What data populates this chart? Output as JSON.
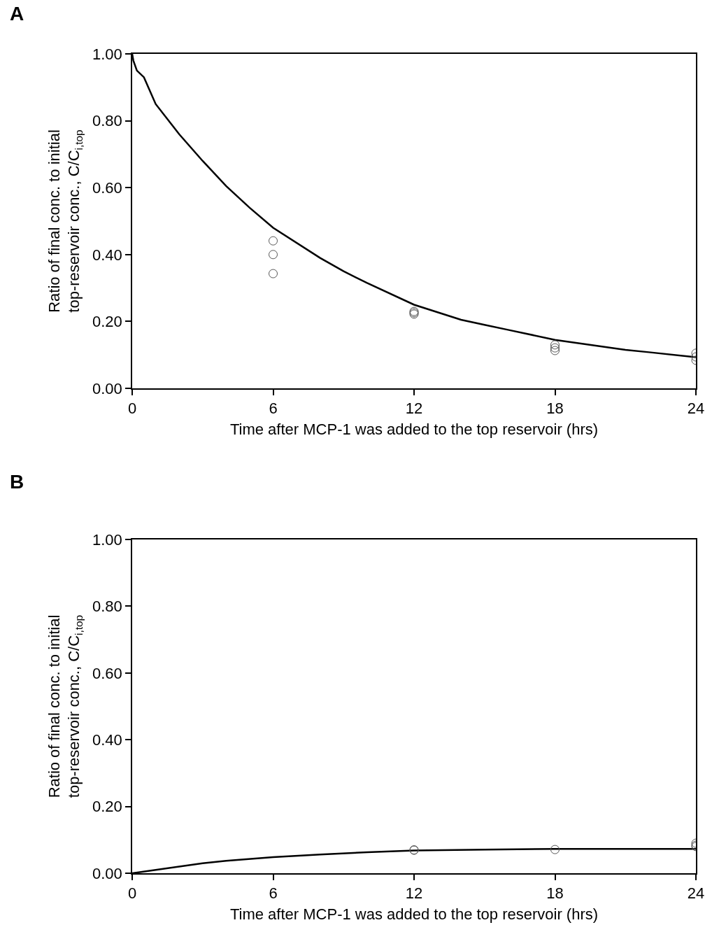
{
  "chart_data": [
    {
      "type": "scatter",
      "title": "A",
      "xlabel": "Time after MCP-1 was added to the top reservoir (hrs)",
      "ylabel": "Ratio of final conc. to initial\ntop-reservoir conc., C/C$_{i,top}$",
      "xlim": [
        0,
        24
      ],
      "ylim": [
        0,
        1
      ],
      "xticks": [
        0,
        6,
        12,
        18,
        24
      ],
      "yticks": [
        {
          "value": 0,
          "label": "0.00"
        },
        {
          "value": 0.2,
          "label": "0.20"
        },
        {
          "value": 0.4,
          "label": "0.40"
        },
        {
          "value": 0.6,
          "label": "0.60"
        },
        {
          "value": 0.8,
          "label": "0.80"
        },
        {
          "value": 1,
          "label": "1.00"
        }
      ],
      "series": [
        {
          "type": "line",
          "color": "#000000",
          "marker": "none",
          "line_style": "solid",
          "x": [
            0,
            0.05,
            0.2,
            0.5,
            1,
            2,
            3,
            4,
            5,
            6,
            8,
            9,
            10,
            12,
            14,
            15,
            16,
            18,
            20,
            21,
            22,
            24
          ],
          "values": [
            1.0,
            0.98,
            0.95,
            0.93,
            0.85,
            0.76,
            0.68,
            0.605,
            0.54,
            0.48,
            0.39,
            0.35,
            0.315,
            0.25,
            0.205,
            0.19,
            0.175,
            0.145,
            0.125,
            0.115,
            0.108,
            0.093
          ]
        },
        {
          "color": "#555555",
          "marker": "circle",
          "x": [
            6,
            6,
            6,
            12,
            12,
            12,
            18,
            18,
            18,
            24,
            24,
            24
          ],
          "values": [
            0.441,
            0.4,
            0.343,
            0.23,
            0.226,
            0.222,
            0.13,
            0.121,
            0.113,
            0.105,
            0.094,
            0.084
          ]
        }
      ]
    },
    {
      "type": "scatter",
      "title": "B",
      "xlabel": "Time after MCP-1 was added to the top reservoir (hrs)",
      "ylabel": "Ratio of final conc. to initial\ntop-reservoir conc., C/C$_{i,top}$",
      "xlim": [
        0,
        24
      ],
      "ylim": [
        0,
        1
      ],
      "xticks": [
        0,
        6,
        12,
        18,
        24
      ],
      "yticks": [
        {
          "value": 0,
          "label": "0.00"
        },
        {
          "value": 0.2,
          "label": "0.20"
        },
        {
          "value": 0.4,
          "label": "0.40"
        },
        {
          "value": 0.6,
          "label": "0.60"
        },
        {
          "value": 0.8,
          "label": "0.80"
        },
        {
          "value": 1,
          "label": "1.00"
        }
      ],
      "series": [
        {
          "type": "line",
          "color": "#000000",
          "marker": "none",
          "line_style": "solid",
          "x": [
            0,
            1,
            2,
            3,
            4,
            6,
            8,
            10,
            12,
            15,
            18,
            21,
            24
          ],
          "values": [
            0,
            0.01,
            0.02,
            0.03,
            0.037,
            0.048,
            0.056,
            0.063,
            0.068,
            0.071,
            0.073,
            0.073,
            0.073
          ]
        },
        {
          "color": "#555555",
          "marker": "circle",
          "x": [
            12,
            12,
            18,
            24,
            24,
            24
          ],
          "values": [
            0.069,
            0.07,
            0.071,
            0.09,
            0.084,
            0.08
          ]
        }
      ]
    }
  ]
}
